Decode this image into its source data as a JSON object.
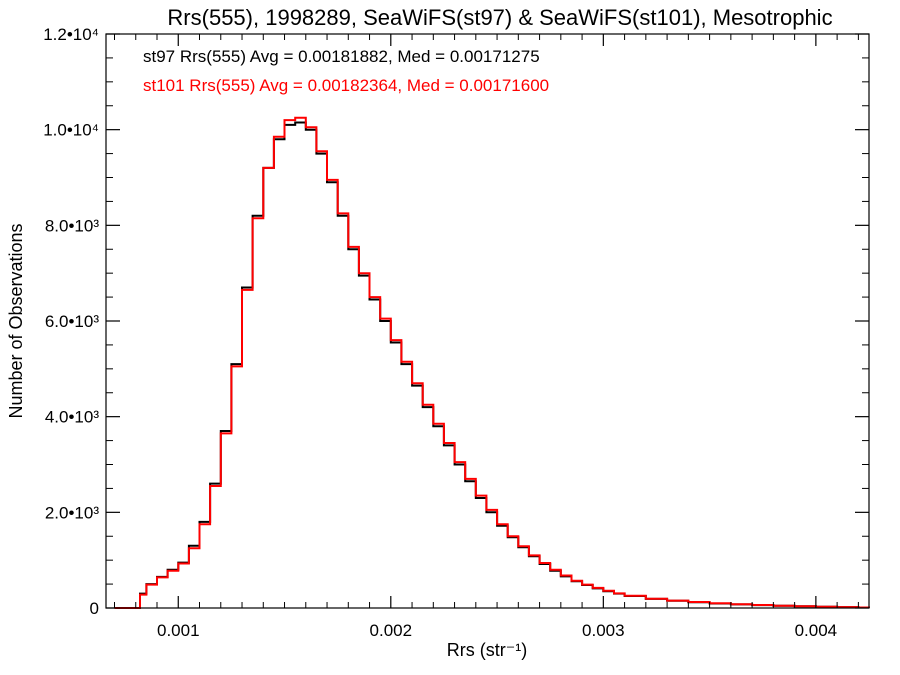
{
  "chart_data": {
    "type": "line",
    "step": true,
    "title": "Rrs(555), 1998289, SeaWiFS(st97) & SeaWiFS(st101), Mesotrophic",
    "xlabel": "Rrs (str⁻¹)",
    "ylabel": "Number of Observations",
    "xlim": [
      0.00066,
      0.00425
    ],
    "ylim": [
      0,
      12000
    ],
    "xticks": [
      {
        "value": 0.001,
        "label": "0.001"
      },
      {
        "value": 0.002,
        "label": "0.002"
      },
      {
        "value": 0.003,
        "label": "0.003"
      },
      {
        "value": 0.004,
        "label": "0.004"
      }
    ],
    "yticks": [
      {
        "value": 0,
        "label": "0"
      },
      {
        "value": 2000,
        "label": "2.0•10³"
      },
      {
        "value": 4000,
        "label": "4.0•10³"
      },
      {
        "value": 6000,
        "label": "6.0•10³"
      },
      {
        "value": 8000,
        "label": "8.0•10³"
      },
      {
        "value": 10000,
        "label": "1.0•10⁴"
      },
      {
        "value": 12000,
        "label": "1.2•10⁴"
      }
    ],
    "annotations": [
      {
        "text": "st97 Rrs(555) Avg = 0.00181882, Med = 0.00171275",
        "color": "#000000"
      },
      {
        "text": "st101 Rrs(555) Avg = 0.00182364, Med = 0.00171600",
        "color": "#ff0000"
      }
    ],
    "grid": false,
    "series": [
      {
        "color": "#000000",
        "x": [
          0.0007,
          0.0008,
          0.00082,
          0.00085,
          0.0009,
          0.00095,
          0.001,
          0.00105,
          0.0011,
          0.00115,
          0.0012,
          0.00125,
          0.0013,
          0.00135,
          0.0014,
          0.00145,
          0.0015,
          0.00155,
          0.0016,
          0.00165,
          0.0017,
          0.00175,
          0.0018,
          0.00185,
          0.0019,
          0.00195,
          0.002,
          0.00205,
          0.0021,
          0.00215,
          0.0022,
          0.00225,
          0.0023,
          0.00235,
          0.0024,
          0.00245,
          0.0025,
          0.00255,
          0.0026,
          0.00265,
          0.0027,
          0.00275,
          0.0028,
          0.00285,
          0.0029,
          0.00295,
          0.003,
          0.00305,
          0.0031,
          0.0032,
          0.0033,
          0.0034,
          0.0035,
          0.0036,
          0.0037,
          0.0038,
          0.0039,
          0.004,
          0.0041,
          0.0042,
          0.00425
        ],
        "y": [
          0,
          0,
          300,
          500,
          650,
          800,
          950,
          1300,
          1800,
          2600,
          3700,
          5100,
          6700,
          8200,
          9200,
          9800,
          10100,
          10150,
          10000,
          9500,
          8900,
          8200,
          7500,
          6950,
          6450,
          6000,
          5550,
          5100,
          4650,
          4200,
          3800,
          3400,
          3000,
          2650,
          2300,
          2000,
          1720,
          1480,
          1270,
          1080,
          920,
          780,
          660,
          560,
          480,
          410,
          350,
          300,
          250,
          190,
          150,
          120,
          95,
          75,
          60,
          45,
          35,
          25,
          18,
          10,
          5
        ]
      },
      {
        "color": "#ff0000",
        "x": [
          0.0007,
          0.0008,
          0.00082,
          0.00085,
          0.0009,
          0.00095,
          0.001,
          0.00105,
          0.0011,
          0.00115,
          0.0012,
          0.00125,
          0.0013,
          0.00135,
          0.0014,
          0.00145,
          0.0015,
          0.00155,
          0.0016,
          0.00165,
          0.0017,
          0.00175,
          0.0018,
          0.00185,
          0.0019,
          0.00195,
          0.002,
          0.00205,
          0.0021,
          0.00215,
          0.0022,
          0.00225,
          0.0023,
          0.00235,
          0.0024,
          0.00245,
          0.0025,
          0.00255,
          0.0026,
          0.00265,
          0.0027,
          0.00275,
          0.0028,
          0.00285,
          0.0029,
          0.00295,
          0.003,
          0.00305,
          0.0031,
          0.0032,
          0.0033,
          0.0034,
          0.0035,
          0.0036,
          0.0037,
          0.0038,
          0.0039,
          0.004,
          0.0041,
          0.0042,
          0.00425
        ],
        "y": [
          0,
          0,
          280,
          490,
          640,
          780,
          930,
          1250,
          1750,
          2550,
          3650,
          5050,
          6650,
          8150,
          9200,
          9850,
          10200,
          10250,
          10050,
          9550,
          8950,
          8250,
          7550,
          7000,
          6500,
          6050,
          5600,
          5150,
          4700,
          4250,
          3850,
          3450,
          3050,
          2700,
          2350,
          2050,
          1750,
          1500,
          1290,
          1100,
          940,
          800,
          680,
          570,
          490,
          420,
          360,
          305,
          255,
          195,
          155,
          125,
          98,
          78,
          62,
          47,
          36,
          26,
          19,
          11,
          6
        ]
      }
    ]
  }
}
